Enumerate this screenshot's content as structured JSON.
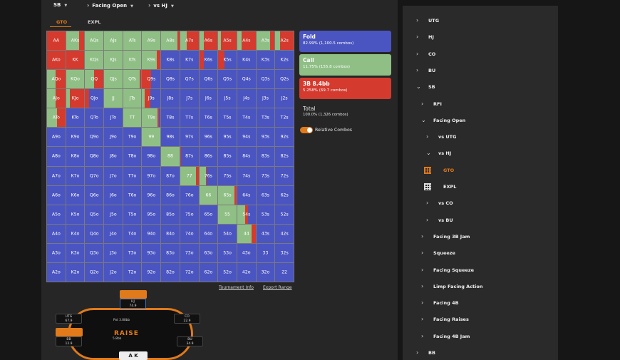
{
  "nav": {
    "position": "SB",
    "scenario": "Facing Open",
    "opponent": "vs HJ"
  },
  "tabs": {
    "gto": "GTO",
    "expl": "EXPL"
  },
  "colors": {
    "fold": "#4a55c1",
    "call": "#8fbf85",
    "raise": "#d43a2e",
    "accent": "#e07a1a"
  },
  "grid": {
    "rows": [
      [
        "AA",
        "AKs",
        "AQs",
        "AJs",
        "ATs",
        "A9s",
        "A8s",
        "A7s",
        "A6s",
        "A5s",
        "A4s",
        "A3s",
        "A2s"
      ],
      [
        "AKo",
        "KK",
        "KQs",
        "KJs",
        "KTs",
        "K9s",
        "K8s",
        "K7s",
        "K6s",
        "K5s",
        "K4s",
        "K3s",
        "K2s"
      ],
      [
        "AQo",
        "KQo",
        "QQ",
        "QJs",
        "QTs",
        "Q9s",
        "Q8s",
        "Q7s",
        "Q6s",
        "Q5s",
        "Q4s",
        "Q3s",
        "Q2s"
      ],
      [
        "AJo",
        "KJo",
        "QJo",
        "JJ",
        "JTs",
        "J9s",
        "J8s",
        "J7s",
        "J6s",
        "J5s",
        "J4s",
        "J3s",
        "J2s"
      ],
      [
        "ATo",
        "KTo",
        "QTo",
        "JTo",
        "TT",
        "T9s",
        "T8s",
        "T7s",
        "T6s",
        "T5s",
        "T4s",
        "T3s",
        "T2s"
      ],
      [
        "A9o",
        "K9o",
        "Q9o",
        "J9o",
        "T9o",
        "99",
        "98s",
        "97s",
        "96s",
        "95s",
        "94s",
        "93s",
        "92s"
      ],
      [
        "A8o",
        "K8o",
        "Q8o",
        "J8o",
        "T8o",
        "98o",
        "88",
        "87s",
        "86s",
        "85s",
        "84s",
        "83s",
        "82s"
      ],
      [
        "A7o",
        "K7o",
        "Q7o",
        "J7o",
        "T7o",
        "97o",
        "87o",
        "77",
        "76s",
        "75s",
        "74s",
        "73s",
        "72s"
      ],
      [
        "A6o",
        "K6o",
        "Q6o",
        "J6o",
        "T6o",
        "96o",
        "86o",
        "76o",
        "66",
        "65s",
        "64s",
        "63s",
        "62s"
      ],
      [
        "A5o",
        "K5o",
        "Q5o",
        "J5o",
        "T5o",
        "95o",
        "85o",
        "75o",
        "65o",
        "55",
        "54s",
        "53s",
        "52s"
      ],
      [
        "A4o",
        "K4o",
        "Q4o",
        "J4o",
        "T4o",
        "94o",
        "84o",
        "74o",
        "64o",
        "54o",
        "44",
        "43s",
        "42s"
      ],
      [
        "A3o",
        "K3o",
        "Q3o",
        "J3o",
        "T3o",
        "93o",
        "83o",
        "73o",
        "63o",
        "53o",
        "43o",
        "33",
        "32s"
      ],
      [
        "A2o",
        "K2o",
        "Q2o",
        "J2o",
        "T2o",
        "92o",
        "82o",
        "72o",
        "62o",
        "52o",
        "42o",
        "32o",
        "22"
      ]
    ],
    "mix": {
      "AA": [
        0,
        0,
        1
      ],
      "AKs": [
        0,
        0.7,
        0.3
      ],
      "AQs": [
        0,
        1,
        0
      ],
      "AJs": [
        0,
        1,
        0
      ],
      "ATs": [
        0,
        1,
        0
      ],
      "A9s": [
        0,
        1,
        0
      ],
      "A8s": [
        0,
        0.88,
        0.12
      ],
      "A7s": [
        0,
        0.35,
        0.65
      ],
      "A6s": [
        0,
        0.25,
        0.75
      ],
      "A5s": [
        0,
        0.15,
        0.85
      ],
      "A4s": [
        0,
        0.25,
        0.75
      ],
      "A3s": [
        0,
        0.75,
        0.25
      ],
      "A2s": [
        0,
        0.25,
        0.75
      ],
      "AKo": [
        0,
        0,
        1
      ],
      "KK": [
        0,
        0,
        1
      ],
      "KQs": [
        0,
        1,
        0
      ],
      "KJs": [
        0,
        1,
        0
      ],
      "KTs": [
        0,
        1,
        0
      ],
      "K9s": [
        0,
        0.8,
        0.2
      ],
      "K8s": [
        1,
        0,
        0
      ],
      "K7s": [
        1,
        0,
        0
      ],
      "K6s": [
        0.75,
        0,
        0.25
      ],
      "K5s": [
        0.65,
        0,
        0.35
      ],
      "AQo": [
        0,
        0.45,
        0.55
      ],
      "KQo": [
        0,
        1,
        0
      ],
      "QQ": [
        0,
        0.5,
        0.5
      ],
      "QJs": [
        0,
        1,
        0
      ],
      "QTs": [
        0,
        0.9,
        0.1
      ],
      "Q9s": [
        0.5,
        0,
        0.5
      ],
      "Q8s": [
        1,
        0,
        0
      ],
      "AJo": [
        0,
        0.45,
        0.55
      ],
      "KJo": [
        0,
        0.2,
        0.8
      ],
      "QJo": [
        0.8,
        0,
        0.2
      ],
      "JJ": [
        0,
        1,
        0
      ],
      "JTs": [
        0,
        1,
        0
      ],
      "J9s": [
        0.55,
        0.15,
        0.3
      ],
      "ATo": [
        0,
        0.55,
        0.45
      ],
      "TT": [
        0,
        1,
        0
      ],
      "T9s": [
        0.1,
        0.85,
        0.05
      ],
      "99": [
        0,
        1,
        0
      ],
      "88": [
        0,
        1,
        0
      ],
      "87s": [
        0.95,
        0,
        0.05
      ],
      "77": [
        0,
        0.85,
        0.15
      ],
      "76s": [
        0.6,
        0.35,
        0.05
      ],
      "66": [
        0,
        1,
        0
      ],
      "65s": [
        0,
        0.9,
        0.1
      ],
      "55": [
        0,
        1,
        0
      ],
      "54s": [
        0.4,
        0.45,
        0.15
      ],
      "44": [
        0,
        0.8,
        0.2
      ]
    }
  },
  "actions": [
    {
      "name": "Fold",
      "detail": "82.99% (1,100.5 combos)"
    },
    {
      "name": "Call",
      "detail": "11.75% (155.8 combos)"
    },
    {
      "name": "3B 8.4bb",
      "detail": "5.258% (69.7 combos)"
    }
  ],
  "total": {
    "label": "Total",
    "detail": "100.0% (1,326 combos)"
  },
  "relative_combos": "Relative Combos",
  "links": {
    "tournament": "Tournament Info",
    "export": "Export Range"
  },
  "table": {
    "logo": "RAISE",
    "pot": "Pot 3.88bb",
    "seats": [
      {
        "name": "HJ",
        "stack": "74.9"
      },
      {
        "name": "UTG",
        "stack": "67.9"
      },
      {
        "name": "CO",
        "stack": "22.9"
      },
      {
        "name": "BB",
        "stack": "12.9"
      },
      {
        "name": "BU",
        "stack": "34.9"
      }
    ],
    "hero_cards": "A K",
    "bet": "5.8bb"
  },
  "tree": [
    {
      "label": "UTG",
      "chev": "›"
    },
    {
      "label": "HJ",
      "chev": "›"
    },
    {
      "label": "CO",
      "chev": "›"
    },
    {
      "label": "BU",
      "chev": "›"
    },
    {
      "label": "SB",
      "chev": "⌄"
    },
    {
      "label": "RFI",
      "chev": "›"
    },
    {
      "label": "Facing Open",
      "chev": "⌄"
    },
    {
      "label": "vs UTG",
      "chev": "›"
    },
    {
      "label": "vs HJ",
      "chev": "⌄"
    },
    {
      "label": "GTO",
      "chev": ""
    },
    {
      "label": "EXPL",
      "chev": ""
    },
    {
      "label": "vs CO",
      "chev": "›"
    },
    {
      "label": "vs BU",
      "chev": "›"
    },
    {
      "label": "Facing 3B Jam",
      "chev": "›"
    },
    {
      "label": "Squeeze",
      "chev": "›"
    },
    {
      "label": "Facing Squeeze",
      "chev": "›"
    },
    {
      "label": "Limp Facing Action",
      "chev": "›"
    },
    {
      "label": "Facing 4B",
      "chev": "›"
    },
    {
      "label": "Facing Raises",
      "chev": "›"
    },
    {
      "label": "Facing 4B Jam",
      "chev": "›"
    },
    {
      "label": "BB",
      "chev": "›"
    }
  ]
}
